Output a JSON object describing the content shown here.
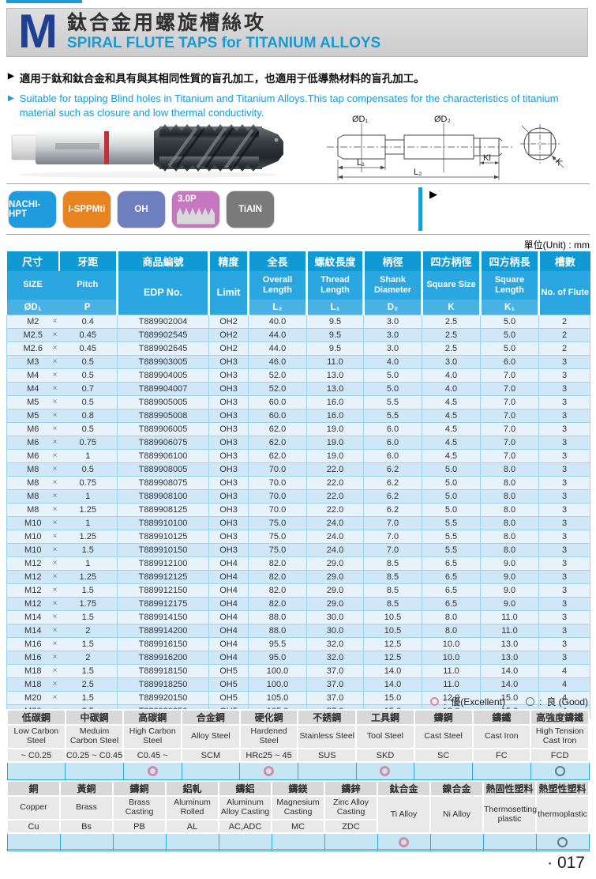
{
  "page": {
    "unit_label": "單位(Unit) : mm",
    "page_number": "· 017"
  },
  "icons": {
    "bullet": "▶"
  },
  "header": {
    "letter": "M",
    "title_zh": "鈦合金用螺旋槽絲攻",
    "title_en": "SPIRAL FLUTE TAPS for TITANIUM ALLOYS"
  },
  "description": {
    "zh": "適用于鈦和鈦合金和具有與其相同性質的盲孔加工，也適用于低導熱材料的盲孔加工。",
    "en": "Suitable for tapping Blind holes in Titanium and Titanium Alloys.This tap compensates for the characteristics of titanium material such as closure and low thermal conductivity."
  },
  "diagram": {
    "d1": "ØD₁",
    "d2": "ØD₂",
    "l1": "L₁",
    "l2": "L₂",
    "kl": "Kl",
    "k": "K"
  },
  "badges": [
    {
      "label": "NACHI-HPT",
      "color": "#1f9cdd"
    },
    {
      "label": "I-SPPMti",
      "color": "#e8841f"
    },
    {
      "label": "OH",
      "color": "#6d7fbe"
    },
    {
      "label": "3.0P",
      "color": "#c678bf"
    },
    {
      "label": "TiAlN",
      "color": "#7a7a7a"
    }
  ],
  "legend": {
    "excellent": "優(Excellent)",
    "good": "良 (Good)",
    "colon": ":"
  },
  "spec_table": {
    "multiply_sign": "×",
    "columns": [
      {
        "zh": "尺寸",
        "en": "SIZE",
        "sym": "ØD₁"
      },
      {
        "zh": "牙距",
        "en": "Pitch",
        "sym": "P"
      },
      {
        "zh": "商品編號",
        "en": "EDP No.",
        "sym": null
      },
      {
        "zh": "精度",
        "en": "Limit",
        "sym": null
      },
      {
        "zh": "全長",
        "en": "Overall Length",
        "sym": "L₂"
      },
      {
        "zh": "螺紋長度",
        "en": "Thread Length",
        "sym": "L₁"
      },
      {
        "zh": "柄徑",
        "en": "Shank Diameter",
        "sym": "D₂"
      },
      {
        "zh": "四方柄徑",
        "en": "Square Size",
        "sym": "K"
      },
      {
        "zh": "四方柄長",
        "en": "Square Length",
        "sym": "K₁"
      },
      {
        "zh": "槽數",
        "en": "No. of Flute",
        "sym": null
      }
    ],
    "rows": [
      {
        "size": "M2",
        "pitch": "0.4",
        "edp": "T889902004",
        "limit": "OH2",
        "l2": "40.0",
        "l1": "9.5",
        "d2": "3.0",
        "k": "2.5",
        "k1": "5.0",
        "flutes": "2"
      },
      {
        "size": "M2.5",
        "pitch": "0.45",
        "edp": "T889902545",
        "limit": "OH2",
        "l2": "44.0",
        "l1": "9.5",
        "d2": "3.0",
        "k": "2.5",
        "k1": "5.0",
        "flutes": "2"
      },
      {
        "size": "M2.6",
        "pitch": "0.45",
        "edp": "T889902645",
        "limit": "OH2",
        "l2": "44.0",
        "l1": "9.5",
        "d2": "3.0",
        "k": "2.5",
        "k1": "5.0",
        "flutes": "2"
      },
      {
        "size": "M3",
        "pitch": "0.5",
        "edp": "T889903005",
        "limit": "OH3",
        "l2": "46.0",
        "l1": "11.0",
        "d2": "4.0",
        "k": "3.0",
        "k1": "6.0",
        "flutes": "3"
      },
      {
        "size": "M4",
        "pitch": "0.5",
        "edp": "T889904005",
        "limit": "OH3",
        "l2": "52.0",
        "l1": "13.0",
        "d2": "5.0",
        "k": "4.0",
        "k1": "7.0",
        "flutes": "3"
      },
      {
        "size": "M4",
        "pitch": "0.7",
        "edp": "T889904007",
        "limit": "OH3",
        "l2": "52.0",
        "l1": "13.0",
        "d2": "5.0",
        "k": "4.0",
        "k1": "7.0",
        "flutes": "3"
      },
      {
        "size": "M5",
        "pitch": "0.5",
        "edp": "T889905005",
        "limit": "OH3",
        "l2": "60.0",
        "l1": "16.0",
        "d2": "5.5",
        "k": "4.5",
        "k1": "7.0",
        "flutes": "3"
      },
      {
        "size": "M5",
        "pitch": "0.8",
        "edp": "T889905008",
        "limit": "OH3",
        "l2": "60.0",
        "l1": "16.0",
        "d2": "5.5",
        "k": "4.5",
        "k1": "7.0",
        "flutes": "3"
      },
      {
        "size": "M6",
        "pitch": "0.5",
        "edp": "T889906005",
        "limit": "OH3",
        "l2": "62.0",
        "l1": "19.0",
        "d2": "6.0",
        "k": "4.5",
        "k1": "7.0",
        "flutes": "3"
      },
      {
        "size": "M6",
        "pitch": "0.75",
        "edp": "T889906075",
        "limit": "OH3",
        "l2": "62.0",
        "l1": "19.0",
        "d2": "6.0",
        "k": "4.5",
        "k1": "7.0",
        "flutes": "3"
      },
      {
        "size": "M6",
        "pitch": "1",
        "edp": "T889906100",
        "limit": "OH3",
        "l2": "62.0",
        "l1": "19.0",
        "d2": "6.0",
        "k": "4.5",
        "k1": "7.0",
        "flutes": "3"
      },
      {
        "size": "M8",
        "pitch": "0.5",
        "edp": "T889908005",
        "limit": "OH3",
        "l2": "70.0",
        "l1": "22.0",
        "d2": "6.2",
        "k": "5.0",
        "k1": "8.0",
        "flutes": "3"
      },
      {
        "size": "M8",
        "pitch": "0.75",
        "edp": "T889908075",
        "limit": "OH3",
        "l2": "70.0",
        "l1": "22.0",
        "d2": "6.2",
        "k": "5.0",
        "k1": "8.0",
        "flutes": "3"
      },
      {
        "size": "M8",
        "pitch": "1",
        "edp": "T889908100",
        "limit": "OH3",
        "l2": "70.0",
        "l1": "22.0",
        "d2": "6.2",
        "k": "5.0",
        "k1": "8.0",
        "flutes": "3"
      },
      {
        "size": "M8",
        "pitch": "1.25",
        "edp": "T889908125",
        "limit": "OH3",
        "l2": "70.0",
        "l1": "22.0",
        "d2": "6.2",
        "k": "5.0",
        "k1": "8.0",
        "flutes": "3"
      },
      {
        "size": "M10",
        "pitch": "1",
        "edp": "T889910100",
        "limit": "OH3",
        "l2": "75.0",
        "l1": "24.0",
        "d2": "7.0",
        "k": "5.5",
        "k1": "8.0",
        "flutes": "3"
      },
      {
        "size": "M10",
        "pitch": "1.25",
        "edp": "T889910125",
        "limit": "OH3",
        "l2": "75.0",
        "l1": "24.0",
        "d2": "7.0",
        "k": "5.5",
        "k1": "8.0",
        "flutes": "3"
      },
      {
        "size": "M10",
        "pitch": "1.5",
        "edp": "T889910150",
        "limit": "OH3",
        "l2": "75.0",
        "l1": "24.0",
        "d2": "7.0",
        "k": "5.5",
        "k1": "8.0",
        "flutes": "3"
      },
      {
        "size": "M12",
        "pitch": "1",
        "edp": "T889912100",
        "limit": "OH4",
        "l2": "82.0",
        "l1": "29.0",
        "d2": "8.5",
        "k": "6.5",
        "k1": "9.0",
        "flutes": "3"
      },
      {
        "size": "M12",
        "pitch": "1.25",
        "edp": "T889912125",
        "limit": "OH4",
        "l2": "82.0",
        "l1": "29.0",
        "d2": "8.5",
        "k": "6.5",
        "k1": "9.0",
        "flutes": "3"
      },
      {
        "size": "M12",
        "pitch": "1.5",
        "edp": "T889912150",
        "limit": "OH4",
        "l2": "82.0",
        "l1": "29.0",
        "d2": "8.5",
        "k": "6.5",
        "k1": "9.0",
        "flutes": "3"
      },
      {
        "size": "M12",
        "pitch": "1.75",
        "edp": "T889912175",
        "limit": "OH4",
        "l2": "82.0",
        "l1": "29.0",
        "d2": "8.5",
        "k": "6.5",
        "k1": "9.0",
        "flutes": "3"
      },
      {
        "size": "M14",
        "pitch": "1.5",
        "edp": "T889914150",
        "limit": "OH4",
        "l2": "88.0",
        "l1": "30.0",
        "d2": "10.5",
        "k": "8.0",
        "k1": "11.0",
        "flutes": "3"
      },
      {
        "size": "M14",
        "pitch": "2",
        "edp": "T889914200",
        "limit": "OH4",
        "l2": "88.0",
        "l1": "30.0",
        "d2": "10.5",
        "k": "8.0",
        "k1": "11.0",
        "flutes": "3"
      },
      {
        "size": "M16",
        "pitch": "1.5",
        "edp": "T889916150",
        "limit": "OH4",
        "l2": "95.5",
        "l1": "32.0",
        "d2": "12.5",
        "k": "10.0",
        "k1": "13.0",
        "flutes": "3"
      },
      {
        "size": "M16",
        "pitch": "2",
        "edp": "T889916200",
        "limit": "OH4",
        "l2": "95.0",
        "l1": "32.0",
        "d2": "12.5",
        "k": "10.0",
        "k1": "13.0",
        "flutes": "3"
      },
      {
        "size": "M18",
        "pitch": "1.5",
        "edp": "T889918150",
        "limit": "OH5",
        "l2": "100.0",
        "l1": "37.0",
        "d2": "14.0",
        "k": "11.0",
        "k1": "14.0",
        "flutes": "4"
      },
      {
        "size": "M18",
        "pitch": "2.5",
        "edp": "T889918250",
        "limit": "OH5",
        "l2": "100.0",
        "l1": "37.0",
        "d2": "14.0",
        "k": "11.0",
        "k1": "14.0",
        "flutes": "4"
      },
      {
        "size": "M20",
        "pitch": "1.5",
        "edp": "T889920150",
        "limit": "OH5",
        "l2": "105.0",
        "l1": "37.0",
        "d2": "15.0",
        "k": "12.0",
        "k1": "15.0",
        "flutes": "4"
      },
      {
        "size": "M20",
        "pitch": "2.5",
        "edp": "T889920250",
        "limit": "OH5",
        "l2": "105.0",
        "l1": "37.0",
        "d2": "15.0",
        "k": "12.0",
        "k1": "15.0",
        "flutes": "4"
      }
    ]
  },
  "material_table_1": {
    "columns": [
      {
        "zh": "低碳鋼",
        "en": "Low Carbon Steel",
        "code": "~ C0.25",
        "rating": ""
      },
      {
        "zh": "中碳鋼",
        "en": "Meduim Carbon Steel",
        "code": "C0.25 ~ C0.45",
        "rating": ""
      },
      {
        "zh": "高碳鋼",
        "en": "High Carbon Steel",
        "code": "C0.45 ~",
        "rating": "excellent"
      },
      {
        "zh": "合金鋼",
        "en": "Alloy Steel",
        "code": "SCM",
        "rating": ""
      },
      {
        "zh": "硬化鋼",
        "en": "Hardened Steel",
        "code": "HRc25 ~ 45",
        "rating": "excellent"
      },
      {
        "zh": "不銹鋼",
        "en": "Stainless Steel",
        "code": "SUS",
        "rating": ""
      },
      {
        "zh": "工具鋼",
        "en": "Tool Steel",
        "code": "SKD",
        "rating": "excellent"
      },
      {
        "zh": "鑄鋼",
        "en": "Cast Steel",
        "code": "SC",
        "rating": ""
      },
      {
        "zh": "鑄鐵",
        "en": "Cast Iron",
        "code": "FC",
        "rating": ""
      },
      {
        "zh": "高強度鑄鐵",
        "en": "High Tension Cast Iron",
        "code": "FCD",
        "rating": "good"
      }
    ]
  },
  "material_table_2": {
    "columns": [
      {
        "zh": "銅",
        "en": "Copper",
        "code": "Cu",
        "rating": ""
      },
      {
        "zh": "黃銅",
        "en": "Brass",
        "code": "Bs",
        "rating": ""
      },
      {
        "zh": "鑄銅",
        "en": "Brass Casting",
        "code": "PB",
        "rating": ""
      },
      {
        "zh": "鋁軋",
        "en": "Aluminum Rolled",
        "code": "AL",
        "rating": ""
      },
      {
        "zh": "鑄鋁",
        "en": "Aluminum Alloy Casting",
        "code": "AC,ADC",
        "rating": ""
      },
      {
        "zh": "鑄鎂",
        "en": "Magnesium Casting",
        "code": "MC",
        "rating": ""
      },
      {
        "zh": "鑄鋅",
        "en": "Zinc Alloy Casting",
        "code": "ZDC",
        "rating": ""
      },
      {
        "zh": "鈦合金",
        "en": "Ti Alloy",
        "code": "",
        "rating": "excellent"
      },
      {
        "zh": "鎳合金",
        "en": "Ni Alloy",
        "code": "",
        "rating": ""
      },
      {
        "zh": "熱固性塑料",
        "en": "Thermosetting plastic",
        "code": "",
        "rating": ""
      },
      {
        "zh": "熱塑性塑料",
        "en": "thermoplastic",
        "code": "",
        "rating": "good"
      }
    ]
  }
}
